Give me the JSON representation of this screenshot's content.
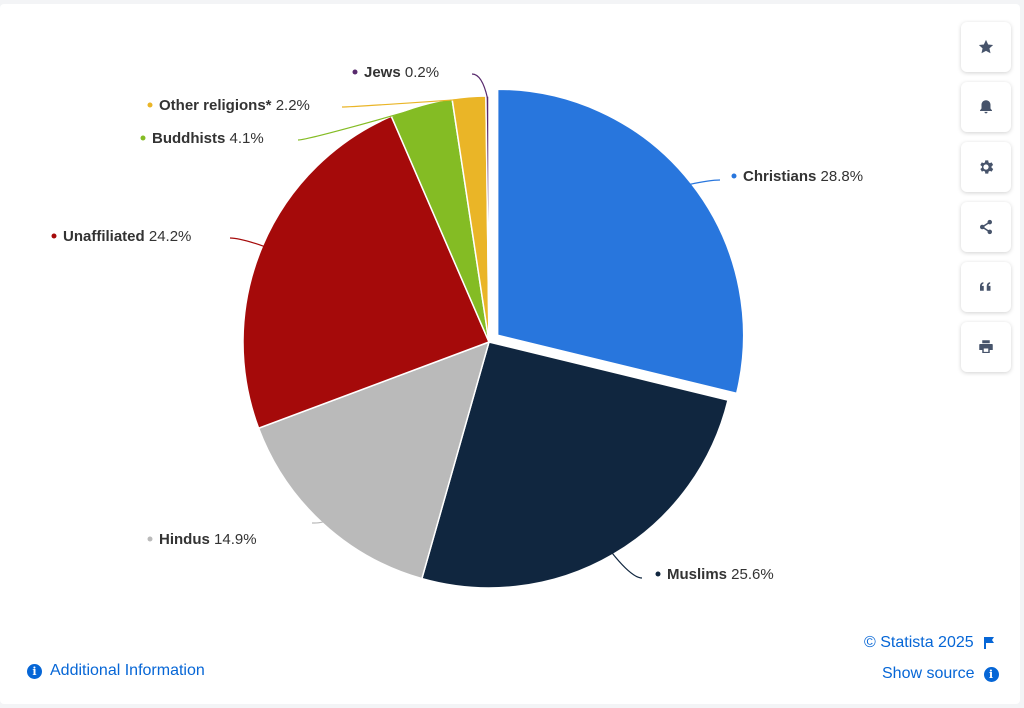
{
  "chart_data": {
    "type": "pie",
    "slices": [
      {
        "name": "Christians",
        "value": 28.8,
        "color": "#2876dd",
        "exploded": true
      },
      {
        "name": "Muslims",
        "value": 25.6,
        "color": "#10263f"
      },
      {
        "name": "Hindus",
        "value": 14.9,
        "color": "#bababa"
      },
      {
        "name": "Unaffiliated",
        "value": 24.2,
        "color": "#a50a0a"
      },
      {
        "name": "Buddhists",
        "value": 4.1,
        "color": "#84bc24"
      },
      {
        "name": "Other religions*",
        "value": 2.2,
        "color": "#eab527"
      },
      {
        "name": "Jews",
        "value": 0.2,
        "color": "#582a6d"
      }
    ],
    "value_suffix": "%"
  },
  "toolbar": [
    {
      "name": "star-icon"
    },
    {
      "name": "bell-icon"
    },
    {
      "name": "gear-icon"
    },
    {
      "name": "share-icon"
    },
    {
      "name": "quote-icon"
    },
    {
      "name": "print-icon"
    }
  ],
  "footer": {
    "additional_info": "Additional Information",
    "credit": "© Statista 2025",
    "show_source": "Show source",
    "info_glyph": "i"
  },
  "colors": {
    "link": "#0666d6",
    "label_text": "#333333"
  }
}
